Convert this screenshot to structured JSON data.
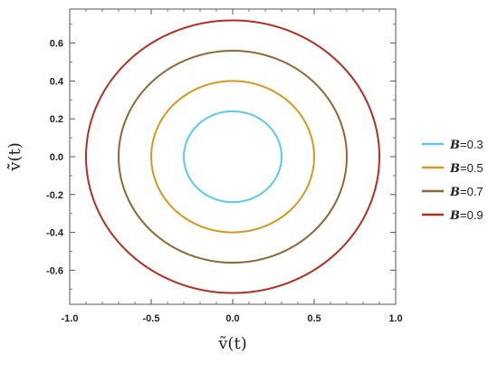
{
  "chart_data": {
    "type": "line",
    "title": "",
    "xlabel": "ṽ(t)",
    "ylabel": "v̇̃(t)",
    "xlim": [
      -1.0,
      1.0
    ],
    "ylim": [
      -0.78,
      0.78
    ],
    "x_ticks": [
      "-1.0",
      "-0.5",
      "0.0",
      "0.5",
      "1.0"
    ],
    "x_tick_values": [
      -1.0,
      -0.5,
      0.0,
      0.5,
      1.0
    ],
    "y_ticks": [
      "-0.6",
      "-0.4",
      "-0.2",
      "0.0",
      "0.2",
      "0.4",
      "0.6"
    ],
    "y_tick_values": [
      -0.6,
      -0.4,
      -0.2,
      0.0,
      0.2,
      0.4,
      0.6
    ],
    "grid": false,
    "legend_position": "right",
    "legend_prefix": "B",
    "series": [
      {
        "name": "=0.3",
        "x_amplitude": 0.3,
        "y_amplitude": 0.24,
        "color": "#5cc8f0"
      },
      {
        "name": "=0.5",
        "x_amplitude": 0.5,
        "y_amplitude": 0.4,
        "color": "#d49a1e"
      },
      {
        "name": "=0.7",
        "x_amplitude": 0.7,
        "y_amplitude": 0.56,
        "color": "#8a6a38"
      },
      {
        "name": "=0.9",
        "x_amplitude": 0.9,
        "y_amplitude": 0.72,
        "color": "#b03022"
      }
    ]
  }
}
